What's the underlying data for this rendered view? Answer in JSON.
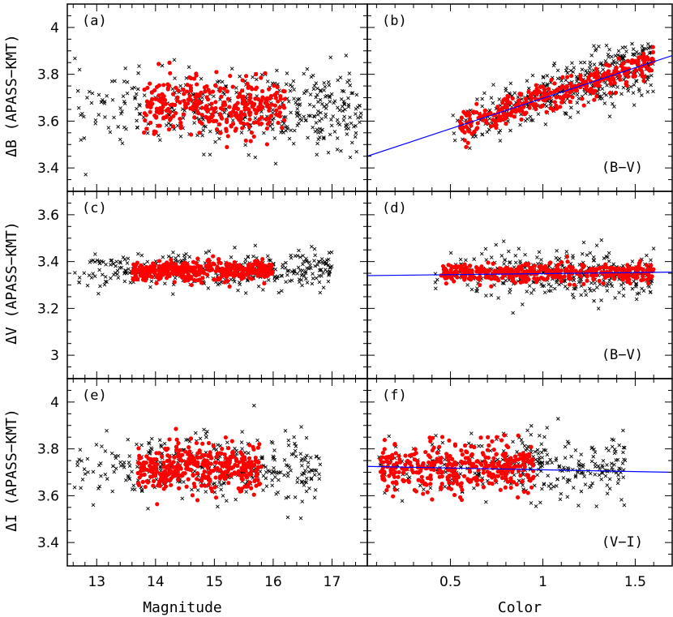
{
  "chart_data": {
    "type": "scatter",
    "xlabels": {
      "left": "Magnitude",
      "right": "Color"
    },
    "rows": [
      {
        "ylabel": "ΔB (APASS−KMT)",
        "ylim": [
          3.3,
          4.1
        ],
        "yticks": [
          3.4,
          3.6,
          3.8,
          4
        ],
        "ytick_labels": [
          "3.4",
          "3.6",
          "3.8",
          "4"
        ]
      },
      {
        "ylabel": "ΔV (APASS−KMT)",
        "ylim": [
          2.9,
          3.7
        ],
        "yticks": [
          3,
          3.2,
          3.4,
          3.6
        ],
        "ytick_labels": [
          "3",
          "3.2",
          "3.4",
          "3.6"
        ]
      },
      {
        "ylabel": "ΔI (APASS−KMT)",
        "ylim": [
          3.3,
          4.1
        ],
        "yticks": [
          3.4,
          3.6,
          3.8,
          4
        ],
        "ytick_labels": [
          "3.4",
          "3.6",
          "3.8",
          "4"
        ]
      }
    ],
    "columns": [
      {
        "xlim": [
          12.5,
          17.6
        ],
        "xticks": [
          13,
          14,
          15,
          16,
          17
        ],
        "xtick_labels": [
          "13",
          "14",
          "15",
          "16",
          "17"
        ]
      },
      {
        "xlim": [
          0.05,
          1.7
        ],
        "xticks": [
          0.5,
          1,
          1.5
        ],
        "xtick_labels": [
          "0.5",
          "1",
          "1.5"
        ]
      }
    ],
    "panels": [
      {
        "id": "a",
        "label": "(a)",
        "row": 0,
        "col": 0,
        "all_stars": {
          "marker": "cross",
          "color": "#000000",
          "x_range": [
            12.6,
            17.5
          ],
          "y_center": 3.65,
          "y_spread": 0.08,
          "n": 420
        },
        "selected_stars": {
          "marker": "dot",
          "color": "#ff0000",
          "x_range": [
            13.8,
            16.2
          ],
          "y_center": 3.66,
          "y_spread": 0.06,
          "n": 360
        }
      },
      {
        "id": "b",
        "label": "(b)",
        "color_label": "(B−V)",
        "row": 0,
        "col": 1,
        "all_stars": {
          "marker": "cross",
          "color": "#000000",
          "x_range": [
            0.5,
            1.6
          ],
          "y_center_at_x0": 3.45,
          "slope": 0.26,
          "y_spread": 0.06,
          "n": 420
        },
        "selected_stars": {
          "marker": "dot",
          "color": "#ff0000",
          "x_range": [
            0.55,
            1.6
          ],
          "y_center_at_x0": 3.45,
          "slope": 0.26,
          "y_spread": 0.03,
          "n": 360
        },
        "fit_line": {
          "color": "#0000ff",
          "x": [
            0.05,
            1.7
          ],
          "y": [
            3.45,
            3.88
          ]
        }
      },
      {
        "id": "c",
        "label": "(c)",
        "row": 1,
        "col": 0,
        "all_stars": {
          "marker": "cross",
          "color": "#000000",
          "x_range": [
            12.6,
            17.0
          ],
          "y_center": 3.36,
          "y_spread": 0.04,
          "n": 380
        },
        "selected_stars": {
          "marker": "dot",
          "color": "#ff0000",
          "x_range": [
            13.6,
            16.0
          ],
          "y_center": 3.36,
          "y_spread": 0.02,
          "n": 420
        }
      },
      {
        "id": "d",
        "label": "(d)",
        "color_label": "(B−V)",
        "row": 1,
        "col": 1,
        "all_stars": {
          "marker": "cross",
          "color": "#000000",
          "x_range": [
            0.4,
            1.6
          ],
          "y_center": 3.35,
          "y_spread": 0.05,
          "n": 360
        },
        "selected_stars": {
          "marker": "dot",
          "color": "#ff0000",
          "x_range": [
            0.45,
            1.6
          ],
          "y_center": 3.35,
          "y_spread": 0.02,
          "n": 420
        },
        "fit_line": {
          "color": "#0000ff",
          "x": [
            0.05,
            1.7
          ],
          "y": [
            3.34,
            3.355
          ]
        }
      },
      {
        "id": "e",
        "label": "(e)",
        "row": 2,
        "col": 0,
        "all_stars": {
          "marker": "cross",
          "color": "#000000",
          "x_range": [
            12.6,
            16.8
          ],
          "y_center": 3.72,
          "y_spread": 0.07,
          "n": 360
        },
        "selected_stars": {
          "marker": "dot",
          "color": "#ff0000",
          "x_range": [
            13.7,
            15.8
          ],
          "y_center": 3.72,
          "y_spread": 0.05,
          "n": 380
        }
      },
      {
        "id": "f",
        "label": "(f)",
        "color_label": "(V−I)",
        "row": 2,
        "col": 1,
        "all_stars": {
          "marker": "cross",
          "color": "#000000",
          "x_range": [
            0.1,
            1.45
          ],
          "y_center": 3.72,
          "y_spread": 0.07,
          "n": 330
        },
        "selected_stars": {
          "marker": "dot",
          "color": "#ff0000",
          "x_range": [
            0.12,
            0.95
          ],
          "y_center": 3.72,
          "y_spread": 0.05,
          "n": 380
        },
        "fit_line": {
          "color": "#0000ff",
          "x": [
            0.05,
            1.7
          ],
          "y": [
            3.725,
            3.7
          ]
        }
      }
    ]
  }
}
